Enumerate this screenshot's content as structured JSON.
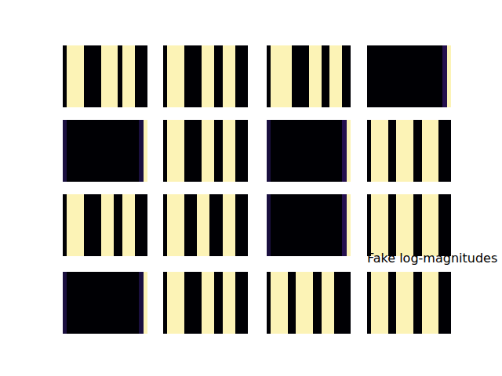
{
  "chart_data": {
    "type": "heatmap",
    "title": "Fake log-magnitudes",
    "color": "magma",
    "tick_labels": false,
    "zlim": [
      0,
      1
    ],
    "xlim": [
      -0.5,
      19.5
    ],
    "ylim": [
      -0.5,
      0.5
    ],
    "panels": [
      {
        "cells": [
          [
            0,
            0.98,
            0.98,
            0.98,
            0.98,
            0,
            0,
            0,
            0,
            0.98,
            0.98,
            0.98,
            0.98,
            0,
            0.98,
            0.98,
            0.98,
            0,
            0,
            0
          ]
        ]
      },
      {
        "cells": [
          [
            0,
            0.98,
            0.98,
            0.98,
            0.98,
            0,
            0,
            0,
            0,
            0.98,
            0.98,
            0.98,
            0,
            0,
            0.98,
            0.98,
            0.98,
            0,
            0,
            0
          ]
        ]
      },
      {
        "cells": [
          [
            0,
            0.98,
            0.98,
            0.98,
            0.98,
            0.98,
            0,
            0,
            0,
            0,
            0.98,
            0.98,
            0.98,
            0,
            0,
            0.98,
            0.98,
            0.98,
            0,
            0
          ]
        ]
      },
      {
        "cells": [
          [
            0,
            0,
            0,
            0,
            0,
            0,
            0,
            0,
            0,
            0,
            0,
            0,
            0,
            0,
            0,
            0,
            0,
            0,
            0.15,
            0.98
          ]
        ]
      },
      {
        "cells": [
          [
            0.12,
            0,
            0,
            0,
            0,
            0,
            0,
            0,
            0,
            0,
            0,
            0,
            0,
            0,
            0,
            0,
            0,
            0,
            0.12,
            0.98
          ]
        ]
      },
      {
        "cells": [
          [
            0,
            0.98,
            0.98,
            0.98,
            0.98,
            0,
            0,
            0,
            0,
            0.98,
            0.98,
            0.98,
            0,
            0,
            0.98,
            0.98,
            0.98,
            0,
            0,
            0
          ]
        ]
      },
      {
        "cells": [
          [
            0.12,
            0,
            0,
            0,
            0,
            0,
            0,
            0,
            0,
            0,
            0,
            0,
            0,
            0,
            0,
            0,
            0,
            0,
            0.15,
            0.98
          ]
        ]
      },
      {
        "cells": [
          [
            0,
            0.98,
            0.98,
            0.98,
            0.98,
            0,
            0,
            0.98,
            0.98,
            0.98,
            0.98,
            0,
            0,
            0.98,
            0.98,
            0.98,
            0.98,
            0,
            0,
            0
          ]
        ]
      },
      {
        "cells": [
          [
            0,
            0.98,
            0.98,
            0.98,
            0.98,
            0,
            0,
            0,
            0,
            0.98,
            0.98,
            0.98,
            0,
            0,
            0.98,
            0.98,
            0.98,
            0,
            0,
            0
          ]
        ]
      },
      {
        "cells": [
          [
            0,
            0.98,
            0.98,
            0.98,
            0.98,
            0,
            0,
            0,
            0.98,
            0.98,
            0.98,
            0,
            0,
            0,
            0.98,
            0.98,
            0.98,
            0,
            0,
            0
          ]
        ]
      },
      {
        "cells": [
          [
            0.12,
            0,
            0,
            0,
            0,
            0,
            0,
            0,
            0,
            0,
            0,
            0,
            0,
            0,
            0,
            0,
            0,
            0,
            0.15,
            0.98
          ]
        ]
      },
      {
        "cells": [
          [
            0,
            0.98,
            0.98,
            0.98,
            0.98,
            0,
            0,
            0.98,
            0.98,
            0.98,
            0.98,
            0,
            0,
            0.98,
            0.98,
            0.98,
            0.98,
            0,
            0,
            0
          ]
        ]
      },
      {
        "cells": [
          [
            0.12,
            0,
            0,
            0,
            0,
            0,
            0,
            0,
            0,
            0,
            0,
            0,
            0,
            0,
            0,
            0,
            0,
            0,
            0.12,
            0.98
          ]
        ]
      },
      {
        "cells": [
          [
            0,
            0.98,
            0.98,
            0.98,
            0.98,
            0,
            0,
            0,
            0,
            0.98,
            0.98,
            0.98,
            0,
            0,
            0.98,
            0.98,
            0.98,
            0,
            0,
            0
          ]
        ]
      },
      {
        "cells": [
          [
            0,
            0.98,
            0.98,
            0.98,
            0.98,
            0,
            0,
            0.98,
            0.98,
            0.98,
            0.98,
            0,
            0,
            0.98,
            0.98,
            0.98,
            0,
            0,
            0,
            0
          ]
        ]
      },
      {
        "cells": [
          [
            0,
            0.98,
            0.98,
            0.98,
            0.98,
            0,
            0,
            0.98,
            0.98,
            0.98,
            0.98,
            0,
            0,
            0.98,
            0.98,
            0.98,
            0.98,
            0,
            0,
            0
          ]
        ]
      }
    ]
  }
}
